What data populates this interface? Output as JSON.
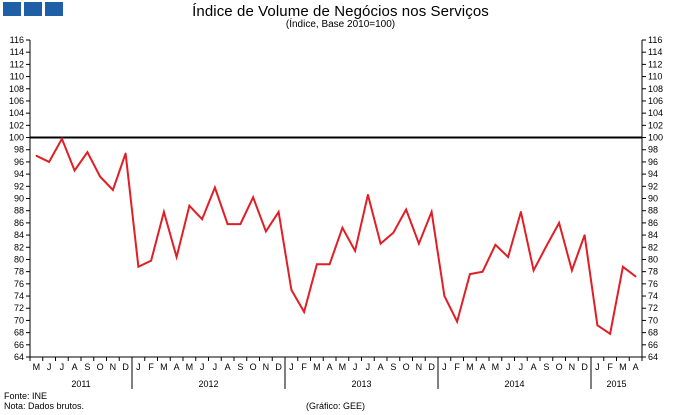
{
  "header": {
    "title": "Índice de Volume de Negócios nos Serviços",
    "subtitle": "(Índice, Base 2010=100)"
  },
  "footer": {
    "source": "Fonte: INE",
    "note": "Nota: Dados brutos.",
    "credit": "(Gráfico: GEE)"
  },
  "logo": {
    "color": "#1f5fa6",
    "squares": 3
  },
  "chart_data": {
    "type": "line",
    "title": "Índice de Volume de Negócios nos Serviços",
    "subtitle": "(Índice, Base 2010=100)",
    "xlabel": "",
    "ylabel": "",
    "ylim": [
      64,
      116
    ],
    "y_ticks": [
      64,
      66,
      68,
      70,
      72,
      74,
      76,
      78,
      80,
      82,
      84,
      86,
      88,
      90,
      92,
      94,
      96,
      98,
      100,
      102,
      104,
      106,
      108,
      110,
      112,
      114,
      116
    ],
    "y_axis_both_sides": true,
    "grid": false,
    "legend": "none",
    "categories": [
      "M",
      "J",
      "J",
      "A",
      "S",
      "O",
      "N",
      "D",
      "J",
      "F",
      "M",
      "A",
      "M",
      "J",
      "J",
      "A",
      "S",
      "O",
      "N",
      "D",
      "J",
      "F",
      "M",
      "A",
      "M",
      "J",
      "J",
      "A",
      "S",
      "O",
      "N",
      "D",
      "J",
      "F",
      "M",
      "A",
      "M",
      "J",
      "J",
      "A",
      "S",
      "O",
      "N",
      "D",
      "J",
      "F",
      "M",
      "A"
    ],
    "years": [
      {
        "label": "2011",
        "start": 0,
        "end": 7
      },
      {
        "label": "2012",
        "start": 8,
        "end": 19
      },
      {
        "label": "2013",
        "start": 20,
        "end": 31
      },
      {
        "label": "2014",
        "start": 32,
        "end": 43
      },
      {
        "label": "2015",
        "start": 44,
        "end": 47
      }
    ],
    "series": [
      {
        "color": "#e01e26",
        "values": [
          97.0,
          96.0,
          99.8,
          94.6,
          97.6,
          93.6,
          91.4,
          97.4,
          78.8,
          79.8,
          87.8,
          80.4,
          88.8,
          86.6,
          91.8,
          85.8,
          85.8,
          90.2,
          84.6,
          87.8,
          75.0,
          71.4,
          79.2,
          79.2,
          85.2,
          81.4,
          90.6,
          82.6,
          84.4,
          88.2,
          82.6,
          87.8,
          74.0,
          69.8,
          77.6,
          78.0,
          82.4,
          80.4,
          87.8,
          78.2,
          82.2,
          86.0,
          78.2,
          84.0,
          69.2,
          67.8,
          78.8,
          77.2
        ]
      }
    ],
    "reference_line": {
      "y": 100,
      "color": "#000000"
    }
  }
}
